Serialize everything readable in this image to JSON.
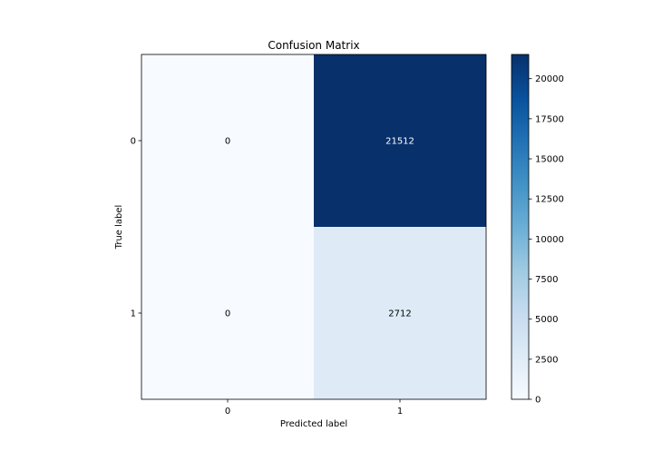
{
  "chart_data": {
    "type": "heatmap",
    "title": "Confusion Matrix",
    "xlabel": "Predicted label",
    "ylabel": "True label",
    "x_categories": [
      "0",
      "1"
    ],
    "y_categories": [
      "0",
      "1"
    ],
    "values": [
      [
        0,
        21512
      ],
      [
        0,
        2712
      ]
    ],
    "cell_labels": [
      [
        "0",
        "21512"
      ],
      [
        "0",
        "2712"
      ]
    ],
    "colormap": "Blues",
    "colorbar": {
      "range": [
        0,
        21512
      ],
      "ticks": [
        0,
        2500,
        5000,
        7500,
        10000,
        12500,
        15000,
        17500,
        20000
      ]
    },
    "grid": false
  }
}
